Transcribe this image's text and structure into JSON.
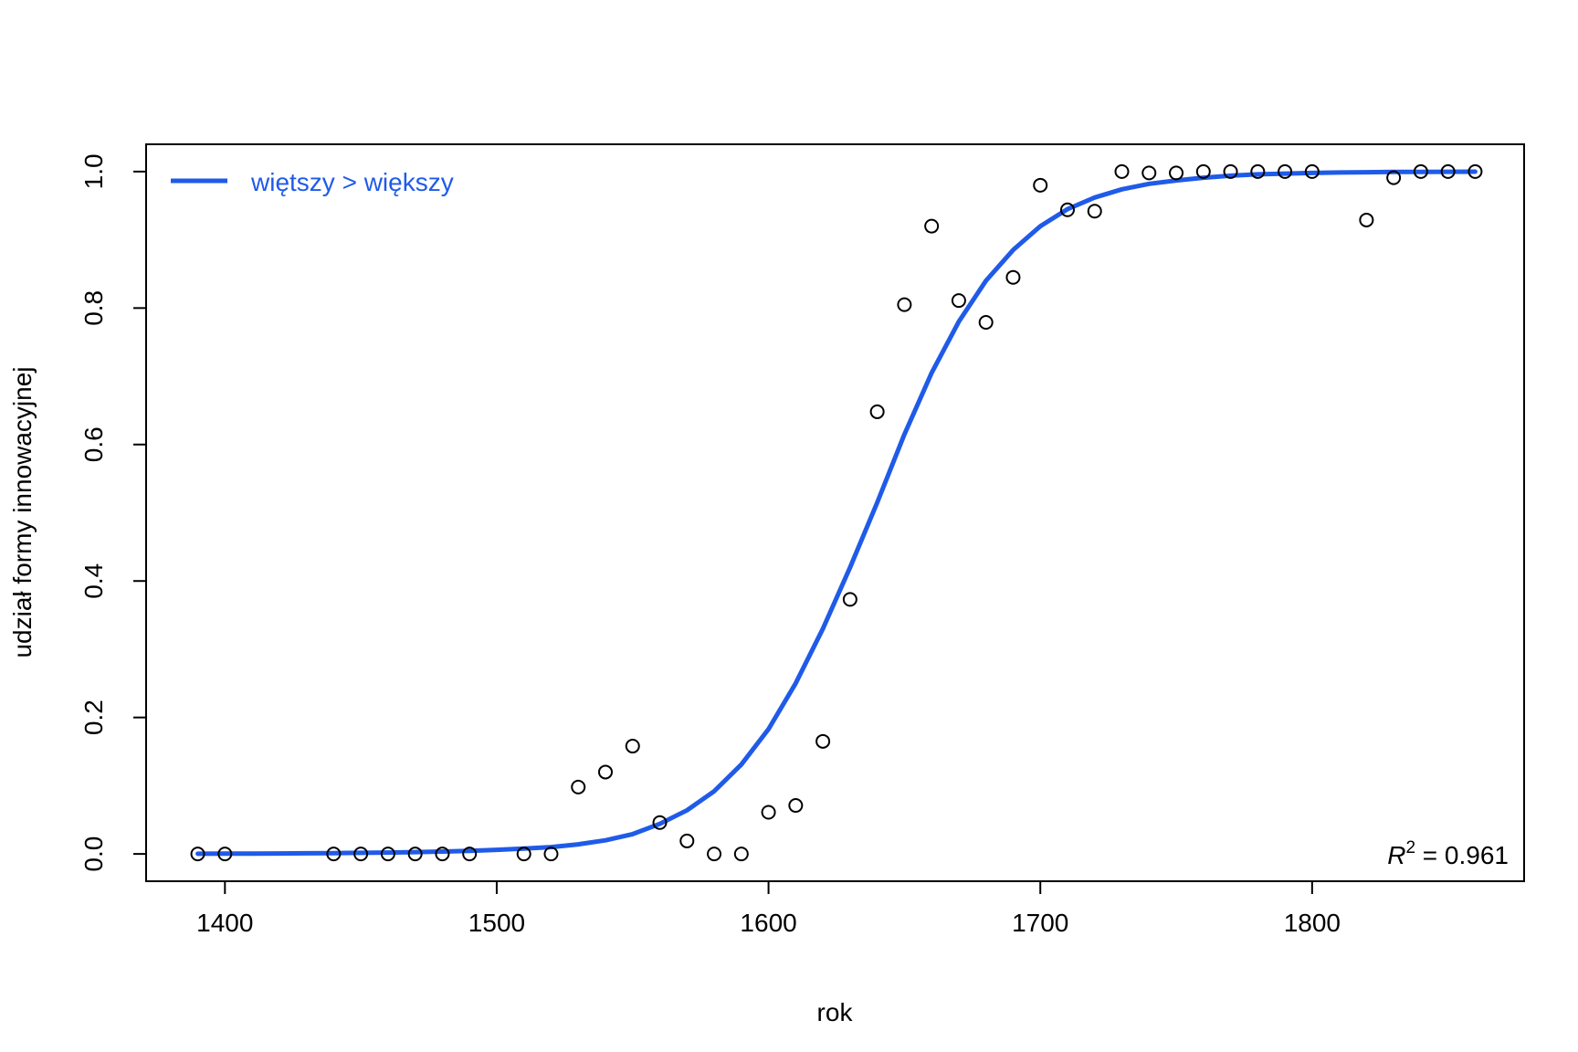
{
  "chart_data": {
    "type": "scatter",
    "title": "",
    "xlabel": "rok",
    "ylabel": "udział formy innowacyjnej",
    "xlim": [
      1371,
      1878
    ],
    "ylim": [
      -0.04,
      1.04
    ],
    "x_ticks": [
      1400,
      1500,
      1600,
      1700,
      1800
    ],
    "x_tick_labels": [
      "1400",
      "1500",
      "1600",
      "1700",
      "1800"
    ],
    "y_ticks": [
      0.0,
      0.2,
      0.4,
      0.6,
      0.8,
      1.0
    ],
    "y_tick_labels": [
      "0.0",
      "0.2",
      "0.4",
      "0.6",
      "0.8",
      "1.0"
    ],
    "grid": false,
    "legend": {
      "position": "top-left",
      "entries": [
        {
          "label": "więtszy > większy",
          "color": "#1f5be8"
        }
      ]
    },
    "points": {
      "x": [
        1390,
        1400,
        1440,
        1450,
        1460,
        1470,
        1480,
        1490,
        1510,
        1520,
        1530,
        1540,
        1550,
        1560,
        1570,
        1580,
        1590,
        1600,
        1610,
        1620,
        1630,
        1640,
        1650,
        1660,
        1670,
        1680,
        1690,
        1700,
        1710,
        1720,
        1730,
        1740,
        1750,
        1760,
        1770,
        1780,
        1790,
        1800,
        1820,
        1830,
        1840,
        1850,
        1860
      ],
      "y": [
        0,
        0,
        0,
        0,
        0,
        0,
        0,
        0,
        0,
        0,
        0.098,
        0.12,
        0.158,
        0.046,
        0.019,
        0,
        0,
        0.061,
        0.071,
        0.165,
        0.373,
        0.648,
        0.805,
        0.92,
        0.811,
        0.779,
        0.845,
        0.98,
        0.944,
        0.942,
        1.0,
        0.998,
        0.998,
        1.0,
        1.0,
        1.0,
        1.0,
        1.0,
        0.929,
        0.991,
        1.0,
        1.0,
        1.0
      ],
      "color": "#000000"
    },
    "series": [
      {
        "name": "więtszy > większy",
        "type": "line",
        "color": "#1f5be8",
        "x": [
          1390,
          1400,
          1410,
          1420,
          1430,
          1440,
          1450,
          1460,
          1470,
          1480,
          1490,
          1500,
          1510,
          1520,
          1530,
          1540,
          1550,
          1560,
          1570,
          1580,
          1590,
          1600,
          1610,
          1620,
          1630,
          1640,
          1650,
          1660,
          1670,
          1680,
          1690,
          1700,
          1710,
          1720,
          1730,
          1740,
          1750,
          1760,
          1770,
          1780,
          1790,
          1800,
          1810,
          1820,
          1830,
          1840,
          1850,
          1860
        ],
        "y": [
          0.0003,
          0.0004,
          0.0005,
          0.0007,
          0.0009,
          0.0012,
          0.0016,
          0.002,
          0.0027,
          0.0035,
          0.0045,
          0.006,
          0.0078,
          0.01,
          0.014,
          0.02,
          0.029,
          0.044,
          0.064,
          0.092,
          0.131,
          0.183,
          0.25,
          0.33,
          0.42,
          0.515,
          0.615,
          0.705,
          0.78,
          0.84,
          0.885,
          0.92,
          0.945,
          0.962,
          0.974,
          0.982,
          0.987,
          0.991,
          0.994,
          0.996,
          0.997,
          0.998,
          0.9987,
          0.9991,
          0.9994,
          0.9996,
          0.9997,
          0.9998
        ]
      }
    ],
    "annotations": [
      {
        "text_italic": "R",
        "superscript": "2",
        "text": " = 0.961",
        "position": "bottom-right"
      }
    ]
  }
}
